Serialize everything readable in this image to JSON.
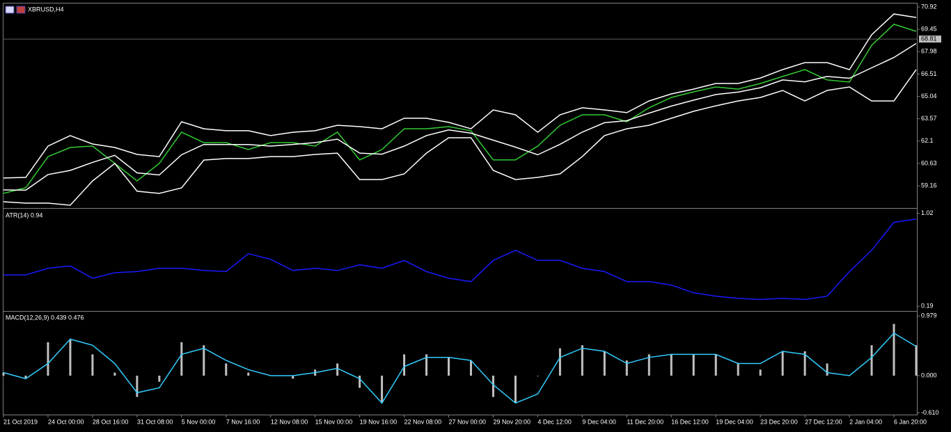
{
  "chart_data": [
    {
      "type": "line",
      "title": "XBRUSD,H4",
      "ylim": [
        57.79,
        71.15
      ],
      "yticks": [
        59.16,
        60.63,
        62.1,
        63.57,
        65.04,
        66.51,
        67.98,
        69.45,
        70.92
      ],
      "current_price": 68.81,
      "series": [
        {
          "color": "#32cd32",
          "values": [
            58.66,
            59.03,
            61.08,
            61.68,
            61.77,
            60.63,
            59.48,
            60.63,
            62.69,
            62.0,
            62.0,
            61.54,
            62.0,
            62.0,
            61.77,
            62.69,
            60.86,
            61.54,
            62.91,
            62.91,
            63.05,
            62.78,
            60.86,
            60.86,
            61.77,
            63.14,
            63.83,
            63.83,
            63.37,
            64.29,
            64.97,
            65.34,
            65.66,
            65.52,
            65.89,
            66.35,
            66.8,
            66.12,
            65.98,
            68.4,
            69.78,
            69.32
          ]
        },
        {
          "color": "#ffffff",
          "values": [
            59.67,
            59.71,
            61.77,
            62.46,
            61.91,
            61.68,
            61.22,
            61.08,
            63.37,
            62.91,
            62.78,
            62.78,
            62.46,
            62.68,
            62.78,
            63.14,
            63.05,
            62.91,
            63.6,
            63.6,
            63.33,
            62.91,
            64.15,
            63.83,
            62.68,
            63.83,
            64.29,
            64.15,
            63.97,
            64.74,
            65.2,
            65.52,
            65.89,
            65.89,
            66.25,
            66.8,
            67.26,
            67.26,
            66.8,
            69.09,
            70.46,
            70.23
          ]
        },
        {
          "color": "#ffffff",
          "values": [
            58.89,
            58.87,
            59.9,
            60.17,
            60.7,
            61.16,
            60.01,
            59.87,
            61.2,
            61.88,
            61.87,
            61.87,
            61.77,
            61.88,
            62.0,
            62.23,
            61.31,
            61.24,
            61.77,
            62.46,
            62.83,
            62.62,
            62.16,
            61.7,
            61.2,
            61.89,
            62.69,
            63.31,
            63.44,
            63.94,
            64.4,
            64.79,
            65.16,
            65.32,
            65.61,
            66.12,
            66.0,
            66.35,
            66.23,
            66.92,
            67.6,
            68.52
          ]
        },
        {
          "color": "#ffffff",
          "values": [
            58.11,
            58.02,
            58.02,
            57.88,
            59.48,
            60.63,
            58.8,
            58.66,
            59.02,
            60.85,
            60.95,
            60.95,
            61.08,
            61.08,
            61.22,
            61.31,
            59.57,
            59.57,
            59.94,
            61.31,
            62.32,
            62.32,
            60.17,
            59.57,
            59.71,
            59.94,
            61.08,
            62.46,
            62.91,
            63.14,
            63.6,
            64.06,
            64.42,
            64.74,
            64.97,
            65.43,
            64.74,
            65.43,
            65.66,
            64.74,
            64.74,
            66.8
          ]
        }
      ]
    },
    {
      "type": "line",
      "title": "ATR(14) 0.94",
      "ylim": [
        0.16,
        1.05
      ],
      "yticks": [
        1.02,
        0.19
      ],
      "series": [
        {
          "color": "#1a1aff",
          "values": [
            0.47,
            0.47,
            0.53,
            0.55,
            0.44,
            0.49,
            0.5,
            0.53,
            0.53,
            0.51,
            0.5,
            0.66,
            0.61,
            0.51,
            0.53,
            0.51,
            0.56,
            0.53,
            0.6,
            0.5,
            0.44,
            0.41,
            0.6,
            0.69,
            0.6,
            0.6,
            0.53,
            0.5,
            0.41,
            0.41,
            0.38,
            0.31,
            0.28,
            0.26,
            0.25,
            0.26,
            0.25,
            0.28,
            0.5,
            0.69,
            0.94,
            0.97
          ]
        }
      ]
    },
    {
      "type": "line",
      "title": "MACD(12,26,9) 0.439 0.476",
      "ylim": [
        -0.64,
        1.04
      ],
      "yticks": [
        0.979,
        {
          "value": 0,
          "label": "0.000"
        },
        {
          "value": -0.61,
          "label": "-0.610"
        }
      ],
      "categories": [
        "21 Oct 2019",
        null,
        "24 Oct 00:00",
        null,
        "28 Oct 16:00",
        null,
        "31 Oct 08:00",
        null,
        "5 Nov 00:00",
        null,
        "7 Nov 16:00",
        null,
        "12 Nov 08:00",
        null,
        "15 Nov 00:00",
        null,
        "19 Nov 16:00",
        null,
        "22 Nov 08:00",
        null,
        "27 Nov 00:00",
        null,
        "29 Nov 20:00",
        null,
        "4 Dec 12:00",
        null,
        "9 Dec 04:00",
        null,
        "11 Dec 20:00",
        null,
        "16 Dec 12:00",
        null,
        "19 Dec 04:00",
        null,
        "23 Dec 20:00",
        null,
        "27 Dec 12:00",
        null,
        "2 Jan 04:00",
        null,
        "6 Jan 20:00",
        null
      ],
      "series": [
        {
          "type": "bar",
          "color": "#c0c0c0",
          "values": [
            0.05,
            -0.05,
            0.55,
            0.6,
            0.35,
            0.05,
            -0.35,
            -0.1,
            0.55,
            0.5,
            0.2,
            0.05,
            0.0,
            -0.05,
            0.1,
            0.2,
            -0.2,
            -0.45,
            0.35,
            0.35,
            0.3,
            0.25,
            -0.35,
            -0.45,
            0.0,
            0.45,
            0.5,
            0.4,
            0.25,
            0.35,
            0.35,
            0.35,
            0.35,
            0.2,
            0.1,
            0.4,
            0.4,
            0.2,
            0.0,
            0.5,
            0.85,
            0.5
          ]
        },
        {
          "type": "line",
          "color": "#33ccff",
          "values": [
            0.05,
            -0.05,
            0.2,
            0.6,
            0.5,
            0.2,
            -0.28,
            -0.2,
            0.35,
            0.45,
            0.25,
            0.1,
            0.0,
            0.0,
            0.05,
            0.12,
            -0.05,
            -0.45,
            0.15,
            0.3,
            0.3,
            0.25,
            -0.15,
            -0.45,
            -0.3,
            0.3,
            0.45,
            0.4,
            0.2,
            0.3,
            0.35,
            0.35,
            0.35,
            0.2,
            0.2,
            0.4,
            0.35,
            0.05,
            0.0,
            0.3,
            0.7,
            0.48
          ]
        }
      ]
    }
  ]
}
